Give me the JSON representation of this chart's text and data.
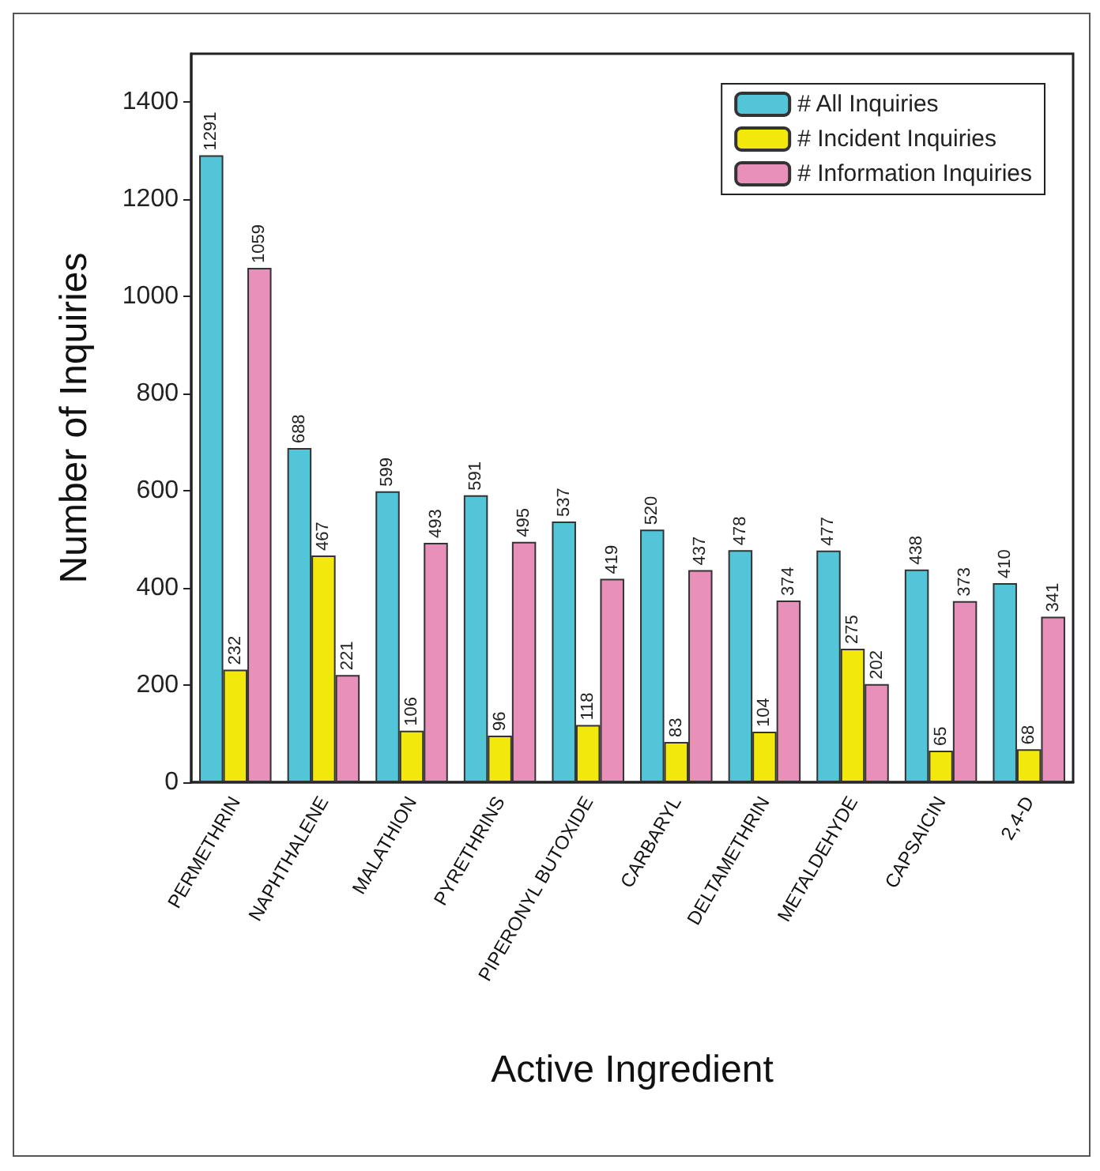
{
  "chart_data": {
    "type": "bar",
    "xlabel": "Active Ingredient",
    "ylabel": "Number of Inquiries",
    "categories": [
      "PERMETHRIN",
      "NAPHTHALENE",
      "MALATHION",
      "PYRETHRINS",
      "PIPERONYL BUTOXIDE",
      "CARBARYL",
      "DELTAMETHRIN",
      "METALDEHYDE",
      "CAPSAICIN",
      "2,4-D"
    ],
    "series": [
      {
        "name": "# All Inquiries",
        "color": "#52c6d8",
        "values": [
          1291,
          688,
          599,
          591,
          537,
          520,
          478,
          477,
          438,
          410
        ]
      },
      {
        "name": "# Incident Inquiries",
        "color": "#f2e80c",
        "values": [
          232,
          467,
          106,
          96,
          118,
          83,
          104,
          275,
          65,
          68
        ]
      },
      {
        "name": "# Information Inquiries",
        "color": "#e88fba",
        "values": [
          1059,
          221,
          493,
          495,
          419,
          437,
          374,
          202,
          373,
          341
        ]
      }
    ],
    "ylim": [
      0,
      1500
    ],
    "yticks": [
      0,
      200,
      400,
      600,
      800,
      1000,
      1200,
      1400
    ],
    "grid": false,
    "legend": "top right",
    "data_labels": true
  }
}
